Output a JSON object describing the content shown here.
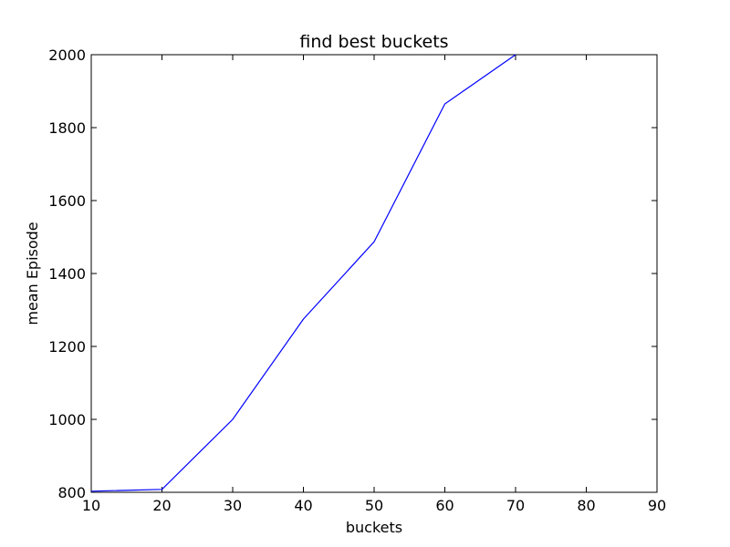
{
  "chart_data": {
    "type": "line",
    "title": "find best buckets",
    "xlabel": "buckets",
    "ylabel": "mean Episode",
    "xlim": [
      10,
      90
    ],
    "ylim": [
      800,
      2000
    ],
    "xticks": [
      "10",
      "20",
      "30",
      "40",
      "50",
      "60",
      "70",
      "80",
      "90"
    ],
    "yticks": [
      "800",
      "1000",
      "1200",
      "1400",
      "1600",
      "1800",
      "2000"
    ],
    "grid": false,
    "legend": "none",
    "series": [
      {
        "color": "#0000ff",
        "x": [
          10,
          20,
          30,
          40,
          50,
          60,
          70
        ],
        "y": [
          803,
          808,
          1000,
          1275,
          1487,
          1865,
          2000
        ]
      }
    ]
  }
}
